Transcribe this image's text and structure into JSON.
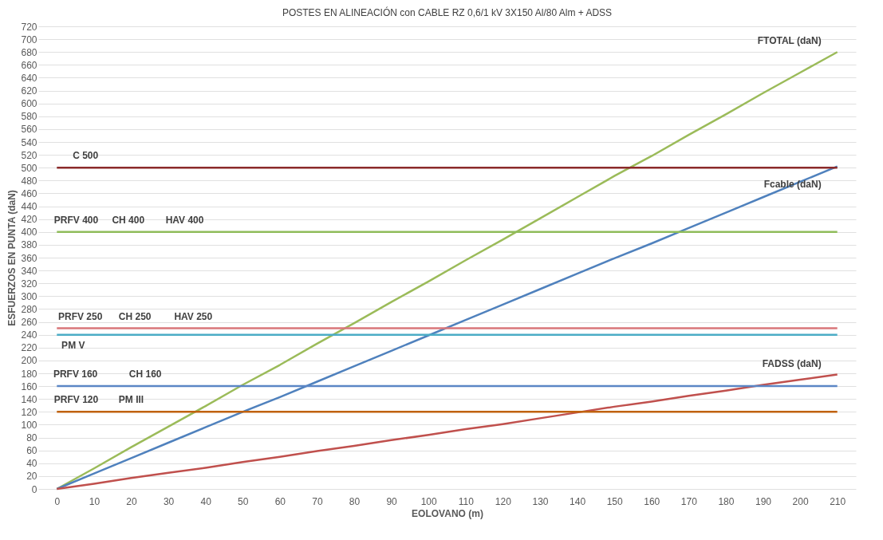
{
  "chart_data": {
    "type": "line",
    "title": "POSTES  EN ALINEACIÓN con CABLE RZ 0,6/1 kV 3X150 Al/80 Alm + ADSS",
    "xlabel": "EOLOVANO (m)",
    "ylabel": "ESFUERZOS EN PUNTA (daN)",
    "x": [
      0,
      10,
      20,
      30,
      40,
      50,
      60,
      70,
      80,
      90,
      100,
      110,
      120,
      130,
      140,
      150,
      160,
      170,
      180,
      190,
      200,
      210
    ],
    "series": [
      {
        "name": "FTOTAL (daN)",
        "color": "#9bbb59",
        "values": [
          0,
          32,
          65,
          97,
          129,
          162,
          193,
          226,
          258,
          291,
          323,
          356,
          388,
          421,
          454,
          487,
          518,
          551,
          583,
          616,
          648,
          680
        ]
      },
      {
        "name": "Fcable (daN)",
        "color": "#4f81bd",
        "values": [
          0,
          24,
          48,
          72,
          96,
          120,
          143,
          167,
          191,
          215,
          239,
          263,
          287,
          311,
          335,
          359,
          382,
          406,
          430,
          454,
          478,
          502
        ]
      },
      {
        "name": "FADSS (daN)",
        "color": "#c0504d",
        "values": [
          0,
          8,
          17,
          25,
          33,
          42,
          50,
          59,
          67,
          76,
          84,
          93,
          101,
          110,
          119,
          128,
          136,
          145,
          153,
          162,
          170,
          178
        ]
      },
      {
        "color": "#8b2a2a",
        "values": [
          500,
          500,
          500,
          500,
          500,
          500,
          500,
          500,
          500,
          500,
          500,
          500,
          500,
          500,
          500,
          500,
          500,
          500,
          500,
          500,
          500,
          500
        ]
      },
      {
        "color": "#8fbc5a",
        "values": [
          400,
          400,
          400,
          400,
          400,
          400,
          400,
          400,
          400,
          400,
          400,
          400,
          400,
          400,
          400,
          400,
          400,
          400,
          400,
          400,
          400,
          400
        ]
      },
      {
        "color": "#d9767a",
        "values": [
          250,
          250,
          250,
          250,
          250,
          250,
          250,
          250,
          250,
          250,
          250,
          250,
          250,
          250,
          250,
          250,
          250,
          250,
          250,
          250,
          250,
          250
        ]
      },
      {
        "color": "#4bacc6",
        "values": [
          240,
          240,
          240,
          240,
          240,
          240,
          240,
          240,
          240,
          240,
          240,
          240,
          240,
          240,
          240,
          240,
          240,
          240,
          240,
          240,
          240,
          240
        ]
      },
      {
        "color": "#5b86c5",
        "values": [
          160,
          160,
          160,
          160,
          160,
          160,
          160,
          160,
          160,
          160,
          160,
          160,
          160,
          160,
          160,
          160,
          160,
          160,
          160,
          160,
          160,
          160
        ]
      },
      {
        "color": "#c0620f",
        "values": [
          120,
          120,
          120,
          120,
          120,
          120,
          120,
          120,
          120,
          120,
          120,
          120,
          120,
          120,
          120,
          120,
          120,
          120,
          120,
          120,
          120,
          120
        ]
      }
    ],
    "annotations": [
      {
        "text": "C 500",
        "x": 7.7,
        "y": 500
      },
      {
        "text": "PRFV 400",
        "x": 5.2,
        "y": 400
      },
      {
        "text": "CH 400",
        "x": 19.2,
        "y": 400
      },
      {
        "text": "HAV 400",
        "x": 34.4,
        "y": 400
      },
      {
        "text": "PRFV 250",
        "x": 6.3,
        "y": 250
      },
      {
        "text": "CH 250",
        "x": 21,
        "y": 250
      },
      {
        "text": "HAV 250",
        "x": 36.7,
        "y": 250
      },
      {
        "text": "PM V",
        "x": 4.4,
        "y": 240
      },
      {
        "text": "PRFV 160",
        "x": 5,
        "y": 160
      },
      {
        "text": "CH 160",
        "x": 23.8,
        "y": 160
      },
      {
        "text": "PRFV 120",
        "x": 5.2,
        "y": 120
      },
      {
        "text": "PM III",
        "x": 20,
        "y": 120
      }
    ],
    "xlim": [
      -5,
      215
    ],
    "xticks": [
      0,
      10,
      20,
      30,
      40,
      50,
      60,
      70,
      80,
      90,
      100,
      110,
      120,
      130,
      140,
      150,
      160,
      170,
      180,
      190,
      200,
      210
    ],
    "ylim": [
      0,
      720
    ],
    "yticks": [
      0,
      20,
      40,
      60,
      80,
      100,
      120,
      140,
      160,
      180,
      200,
      220,
      240,
      260,
      280,
      300,
      320,
      340,
      360,
      380,
      400,
      420,
      440,
      460,
      480,
      500,
      520,
      540,
      560,
      580,
      600,
      620,
      640,
      660,
      680,
      700,
      720
    ],
    "grid": "y",
    "line_style": "solid",
    "marker": "none"
  }
}
